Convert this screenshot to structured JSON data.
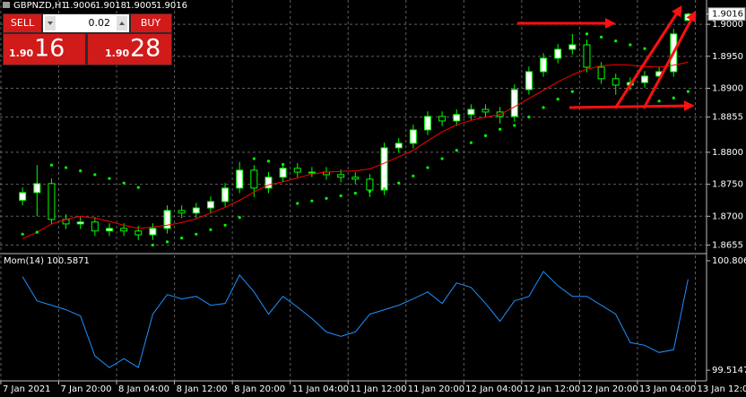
{
  "chart_data": [
    {
      "type": "candlestick",
      "title": "GBPNZD,H1",
      "x": [
        3,
        5,
        7,
        9,
        11,
        13,
        15,
        17,
        19,
        21,
        23,
        25,
        27,
        29,
        31,
        33,
        35,
        37,
        39,
        41,
        43,
        45,
        47,
        49,
        51,
        53,
        55,
        57,
        59,
        61,
        63,
        65,
        67,
        69,
        71,
        73,
        75,
        77,
        79,
        81,
        83,
        85,
        87,
        89,
        91,
        93,
        95
      ],
      "open": [
        1.8725,
        1.8737,
        1.8751,
        1.8695,
        1.8688,
        1.8691,
        1.8677,
        1.8681,
        1.8677,
        1.8671,
        1.8681,
        1.8709,
        1.8705,
        1.8713,
        1.8723,
        1.8744,
        1.8772,
        1.8744,
        1.8761,
        1.8775,
        1.8769,
        1.8769,
        1.8765,
        1.8761,
        1.8758,
        1.8741,
        1.8807,
        1.8814,
        1.8835,
        1.8856,
        1.8849,
        1.8859,
        1.8867,
        1.8863,
        1.8856,
        1.8898,
        1.8926,
        1.8947,
        1.8961,
        1.8968,
        1.8933,
        1.8915,
        1.8905,
        1.8909,
        1.8919,
        1.8926,
        1.9006
      ],
      "high": [
        1.8745,
        1.878,
        1.8759,
        1.8703,
        1.8699,
        1.8699,
        1.8689,
        1.8689,
        1.8685,
        1.8689,
        1.8717,
        1.8717,
        1.8721,
        1.8731,
        1.8752,
        1.8785,
        1.878,
        1.8769,
        1.8783,
        1.8783,
        1.8777,
        1.8777,
        1.8773,
        1.8769,
        1.8766,
        1.8815,
        1.8822,
        1.8843,
        1.8864,
        1.8864,
        1.8867,
        1.8875,
        1.8875,
        1.8871,
        1.8906,
        1.8934,
        1.8955,
        1.8969,
        1.8985,
        1.8976,
        1.8941,
        1.8923,
        1.8917,
        1.8927,
        1.8934,
        1.8993,
        1.9018
      ],
      "low": [
        1.8717,
        1.87,
        1.8687,
        1.868,
        1.868,
        1.8669,
        1.8669,
        1.8669,
        1.8663,
        1.8663,
        1.8673,
        1.8697,
        1.8697,
        1.8705,
        1.8715,
        1.8736,
        1.873,
        1.8736,
        1.8753,
        1.8761,
        1.8761,
        1.8757,
        1.8753,
        1.875,
        1.873,
        1.8733,
        1.8799,
        1.8806,
        1.8827,
        1.8841,
        1.8841,
        1.8851,
        1.8855,
        1.8845,
        1.8848,
        1.889,
        1.8918,
        1.8939,
        1.8953,
        1.8925,
        1.8907,
        1.889,
        1.8897,
        1.8901,
        1.8911,
        1.8918,
        1.9005
      ],
      "close": [
        1.8737,
        1.8751,
        1.8695,
        1.8688,
        1.8691,
        1.8677,
        1.8681,
        1.8677,
        1.8671,
        1.8681,
        1.8709,
        1.8705,
        1.8713,
        1.8723,
        1.8744,
        1.8772,
        1.8744,
        1.8761,
        1.8775,
        1.8769,
        1.8769,
        1.8765,
        1.8761,
        1.8758,
        1.8741,
        1.8807,
        1.8814,
        1.8835,
        1.8856,
        1.8849,
        1.8859,
        1.8867,
        1.8863,
        1.8856,
        1.8898,
        1.8926,
        1.8947,
        1.8961,
        1.8968,
        1.8933,
        1.8915,
        1.8905,
        1.8909,
        1.8919,
        1.8926,
        1.8985,
        1.9016
      ],
      "color": "#00ff00",
      "up_fill": "#ffffff",
      "down_fill": "#000000",
      "overlays": [
        {
          "type": "line",
          "color": "#ff0000",
          "values": [
            1.8665,
            1.8675,
            1.8688,
            1.8695,
            1.87,
            1.8697,
            1.8692,
            1.8686,
            1.8681,
            1.8683,
            1.8686,
            1.869,
            1.8696,
            1.8705,
            1.8714,
            1.8725,
            1.8738,
            1.8749,
            1.8754,
            1.876,
            1.8766,
            1.8769,
            1.877,
            1.8771,
            1.8774,
            1.8783,
            1.8793,
            1.8803,
            1.8818,
            1.8832,
            1.8843,
            1.885,
            1.8855,
            1.8859,
            1.8871,
            1.8884,
            1.8897,
            1.891,
            1.8921,
            1.893,
            1.8935,
            1.8937,
            1.8936,
            1.8934,
            1.8933,
            1.8936,
            1.8941
          ]
        },
        {
          "type": "scatter",
          "color": "#00ff00",
          "values": [
            1.8672,
            1.8675,
            1.878,
            1.8776,
            1.8771,
            1.8765,
            1.8759,
            1.8752,
            1.8745,
            1.8655,
            1.866,
            1.8666,
            1.8672,
            1.8679,
            1.8686,
            1.8698,
            1.879,
            1.8786,
            1.8781,
            1.872,
            1.8724,
            1.8728,
            1.8732,
            1.8736,
            1.8739,
            1.8743,
            1.8752,
            1.8763,
            1.8776,
            1.879,
            1.8803,
            1.8815,
            1.8826,
            1.8836,
            1.8842,
            1.8855,
            1.887,
            1.8883,
            1.8895,
            1.8985,
            1.898,
            1.8974,
            1.8968,
            1.8962,
            1.888,
            1.8885,
            1.8895
          ]
        }
      ],
      "current_price": 1.9016,
      "ylim": [
        1.8643,
        1.9038
      ],
      "yticks": [
        {
          "value": 1.9,
          "label": "1.9000"
        },
        {
          "value": 1.895,
          "label": "1.8950"
        },
        {
          "value": 1.89,
          "label": "1.8900"
        },
        1.8855,
        {
          "value": 1.88,
          "label": "1.8800"
        },
        {
          "value": 1.875,
          "label": "1.8750"
        },
        {
          "value": 1.87,
          "label": "1.8700"
        },
        1.8655
      ],
      "xlim": [
        -0.12,
        97.8
      ],
      "xticks": [
        {
          "value": 0,
          "label": "7 Jan 2021"
        },
        {
          "value": 8,
          "label": "7 Jan 20:00"
        },
        {
          "value": 16,
          "label": "8 Jan 04:00"
        },
        {
          "value": 24,
          "label": "8 Jan 12:00"
        },
        {
          "value": 32,
          "label": "8 Jan 20:00"
        },
        {
          "value": 40,
          "label": "11 Jan 04:00"
        },
        {
          "value": 48,
          "label": "11 Jan 12:00"
        },
        {
          "value": 56,
          "label": "11 Jan 20:00"
        },
        {
          "value": 64,
          "label": "12 Jan 04:00"
        },
        {
          "value": 72,
          "label": "12 Jan 12:00"
        },
        {
          "value": 80,
          "label": "12 Jan 20:00"
        },
        {
          "value": 88,
          "label": "13 Jan 04:00"
        },
        {
          "value": 96,
          "label": "13 Jan 12:00"
        }
      ],
      "grid": true
    },
    {
      "type": "line",
      "title": "Mom(14) 100.5871",
      "x": [
        3,
        5,
        7,
        9,
        11,
        13,
        15,
        17,
        19,
        21,
        23,
        25,
        27,
        29,
        31,
        33,
        35,
        37,
        39,
        41,
        43,
        45,
        47,
        49,
        51,
        53,
        55,
        57,
        59,
        61,
        63,
        65,
        67,
        69,
        71,
        73,
        75,
        77,
        79,
        81,
        83,
        85,
        87,
        89,
        91,
        93,
        95
      ],
      "series": [
        {
          "color": "#1e90ff",
          "values": [
            100.617,
            100.333,
            100.281,
            100.228,
            100.155,
            99.683,
            99.546,
            99.651,
            99.546,
            100.176,
            100.407,
            100.355,
            100.386,
            100.281,
            100.302,
            100.638,
            100.439,
            100.176,
            100.386,
            100.26,
            100.124,
            99.966,
            99.914,
            99.966,
            100.176,
            100.228,
            100.281,
            100.355,
            100.439,
            100.302,
            100.544,
            100.491,
            100.302,
            100.092,
            100.333,
            100.386,
            100.68,
            100.512,
            100.386,
            100.386,
            100.281,
            100.176,
            99.84,
            99.809,
            99.724,
            99.756,
            100.5871
          ]
        }
      ],
      "ylim": [
        99.389,
        100.869
      ],
      "yticks": [
        100.806,
        99.5147
      ],
      "grid": false
    }
  ],
  "trade_panel": {
    "sell": "SELL",
    "buy": "BUY",
    "lot": "0.02",
    "sell_prefix": "1.90",
    "sell_pips": "16",
    "buy_prefix": "1.90",
    "buy_pips": "28"
  }
}
